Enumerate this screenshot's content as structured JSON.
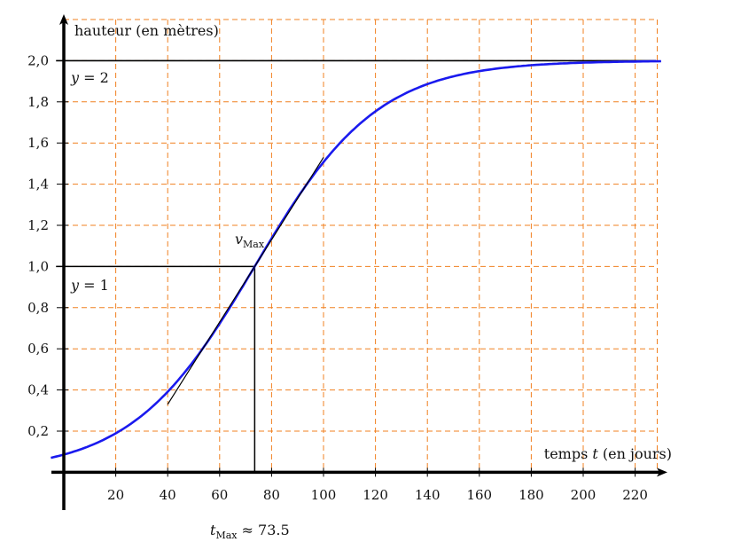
{
  "chart_data": {
    "type": "line",
    "xlabel": "temps t (en jours)",
    "xlabel_parts": {
      "before": "temps ",
      "var": "t",
      "after": " (en jours)"
    },
    "ylabel": "hauteur (en mètres)",
    "xlim": [
      -5,
      230
    ],
    "ylim": [
      -0.19,
      2.2
    ],
    "xticks": [
      20,
      40,
      60,
      80,
      100,
      120,
      140,
      160,
      180,
      200,
      220
    ],
    "xtick_labels": [
      "20",
      "40",
      "60",
      "80",
      "100",
      "120",
      "140",
      "160",
      "180",
      "200",
      "220"
    ],
    "yticks": [
      0.2,
      0.4,
      0.6,
      0.8,
      1.0,
      1.2,
      1.4,
      1.6,
      1.8,
      2.0
    ],
    "ytick_labels": [
      "0,2",
      "0,4",
      "0,6",
      "0,8",
      "1,0",
      "1,2",
      "1,4",
      "1,6",
      "1,8",
      "2,0"
    ],
    "grid": true,
    "grid_color": "#f08020",
    "series": [
      {
        "function": "y = 2 / (1 + exp(-0.0422 (t - 73.5)))",
        "t_range": [
          -5,
          230
        ],
        "color": "#1a1aee"
      }
    ],
    "tangent": {
      "from": [
        40,
        0.33
      ],
      "to": [
        100,
        1.53
      ],
      "color": "#000000"
    },
    "asymptotes": [
      {
        "y": 2,
        "label_var": "y",
        "label_rest": " = 2"
      },
      {
        "y": 1,
        "label_var": "y",
        "label_rest": " = 1"
      }
    ],
    "inflection": {
      "t": 73.5,
      "y": 1.0
    },
    "annotations": {
      "vmax": {
        "main": "v",
        "sub": "Max"
      },
      "tmax": {
        "main": "t",
        "sub": "Max",
        "rest": " ≈ 73.5"
      }
    }
  }
}
